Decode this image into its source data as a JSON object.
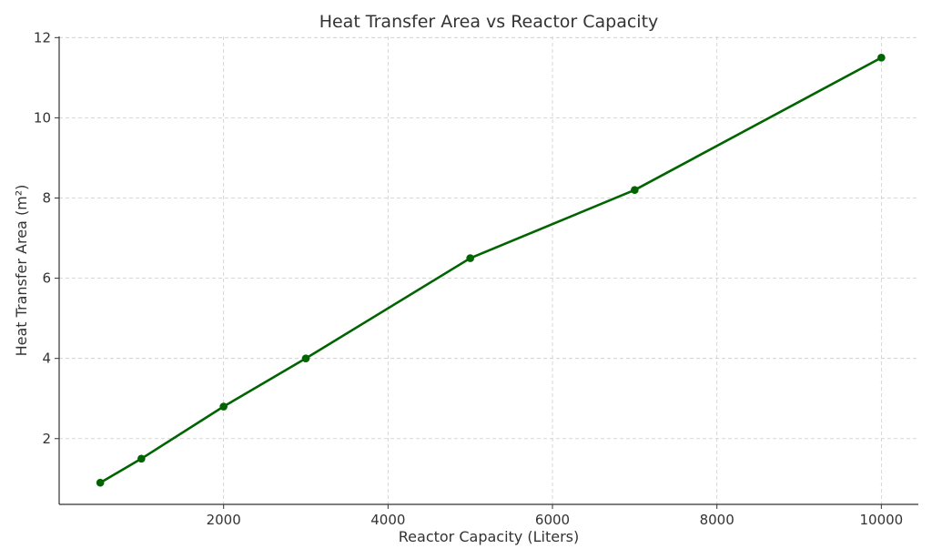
{
  "chart_data": {
    "type": "line",
    "title": "Heat Transfer Area vs Reactor Capacity",
    "xlabel": "Reactor Capacity (Liters)",
    "ylabel": "Heat Transfer Area (m²)",
    "xlim": [
      0,
      10450
    ],
    "ylim": [
      0.36,
      12.03
    ],
    "xticks": [
      2000,
      4000,
      6000,
      8000,
      10000
    ],
    "yticks": [
      2,
      4,
      6,
      8,
      10,
      12
    ],
    "grid": true,
    "series": [
      {
        "color": "#006400",
        "marker": "circle",
        "x": [
          500,
          1000,
          2000,
          3000,
          5000,
          7000,
          10000
        ],
        "y": [
          0.9,
          1.5,
          2.8,
          4.0,
          6.5,
          8.2,
          11.5
        ]
      }
    ]
  }
}
